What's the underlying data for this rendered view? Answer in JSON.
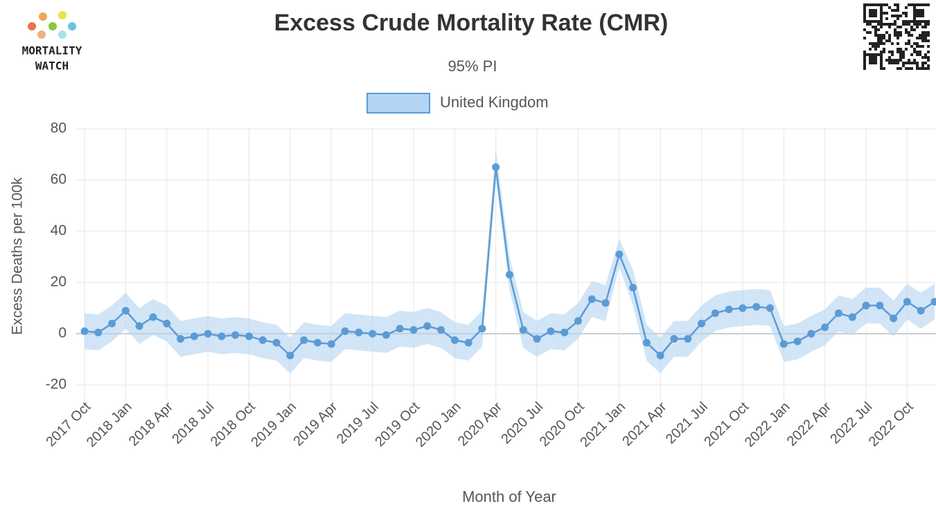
{
  "chart_data": {
    "type": "line",
    "title": "Excess Crude Mortality Rate (CMR)",
    "subtitle": "95% PI",
    "brand": [
      "MORTALITY",
      "WATCH"
    ],
    "x_label": "Month of Year",
    "y_label": "Excess Deaths per 100k",
    "categories": [
      "2017 Oct",
      null,
      null,
      "2018 Jan",
      null,
      null,
      "2018 Apr",
      null,
      null,
      "2018 Jul",
      null,
      null,
      "2018 Oct",
      null,
      null,
      "2019 Jan",
      null,
      null,
      "2019 Apr",
      null,
      null,
      "2019 Jul",
      null,
      null,
      "2019 Oct",
      null,
      null,
      "2020 Jan",
      null,
      null,
      "2020 Apr",
      null,
      null,
      "2020 Jul",
      null,
      null,
      "2020 Oct",
      null,
      null,
      "2021 Jan",
      null,
      null,
      "2021 Apr",
      null,
      null,
      "2021 Jul",
      null,
      null,
      "2021 Oct",
      null,
      null,
      "2022 Jan",
      null,
      null,
      "2022 Apr",
      null,
      null,
      "2022 Jul",
      null,
      null,
      "2022 Oct",
      null,
      null
    ],
    "series": [
      {
        "name": "United Kingdom",
        "color": "#5b9bd5",
        "band_color": "#b3d4f2",
        "values": [
          1,
          0.5,
          4,
          9,
          3,
          6.5,
          4,
          -2,
          -1,
          0,
          -1,
          -0.5,
          -1,
          -2.5,
          -3.5,
          -8.5,
          -2.5,
          -3.5,
          -4,
          1,
          0.5,
          0,
          -0.5,
          2,
          1.5,
          3,
          1.5,
          -2.5,
          -3.5,
          2,
          65,
          23,
          1.5,
          -2,
          1,
          0.5,
          5,
          13.5,
          12,
          31,
          18,
          -3.5,
          -8.5,
          -2,
          -2,
          4,
          8,
          9.5,
          10,
          10.5,
          10,
          -4,
          -3,
          0,
          2.5,
          8,
          6.5,
          11,
          11,
          6,
          12.5,
          9,
          12.5
        ],
        "lower": [
          -6,
          -6.5,
          -3,
          2,
          -4,
          -0.5,
          -3,
          -9,
          -8,
          -7,
          -8,
          -7.5,
          -8,
          -9.5,
          -10.5,
          -15.5,
          -9.5,
          -10.5,
          -11,
          -6,
          -6.5,
          -7,
          -7.5,
          -5,
          -5.5,
          -4,
          -5.5,
          -9.5,
          -10.5,
          -5,
          60,
          17,
          -5.5,
          -9,
          -6,
          -6.5,
          -2,
          6.5,
          5,
          26,
          11,
          -10.5,
          -15.5,
          -9,
          -9,
          -3,
          1,
          2.5,
          3,
          3.5,
          3,
          -11,
          -10,
          -7,
          -4.5,
          1,
          -0.5,
          4,
          4,
          -1,
          5.5,
          2,
          5.5
        ],
        "upper": [
          8,
          7.5,
          11,
          16,
          10,
          13.5,
          11,
          5,
          6,
          7,
          6,
          6.5,
          6,
          4.5,
          3.5,
          -1.5,
          4.5,
          3.5,
          3,
          8,
          7.5,
          7,
          6.5,
          9,
          8.5,
          10,
          8.5,
          4.5,
          3.5,
          9,
          72,
          30,
          8.5,
          5,
          8,
          7.5,
          12,
          20.5,
          19,
          37,
          25,
          3.5,
          -1.5,
          5,
          5,
          11,
          15,
          16.5,
          17,
          17.5,
          17,
          3,
          4,
          7,
          9.5,
          15,
          13.5,
          18,
          18,
          13,
          19.5,
          16,
          19.5
        ]
      }
    ],
    "ylim": [
      -24,
      80
    ],
    "yticks": [
      -20,
      0,
      20,
      40,
      60,
      80
    ],
    "grid": true
  }
}
